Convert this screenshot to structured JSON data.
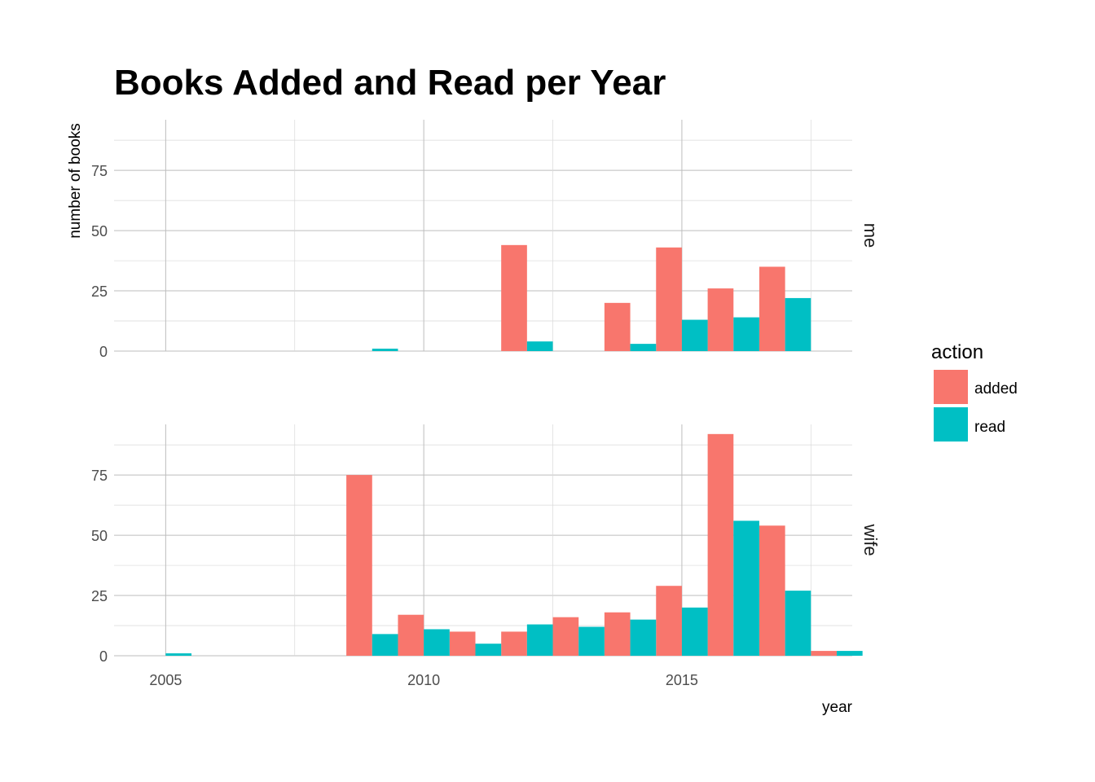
{
  "chart_data": {
    "type": "bar",
    "title": "Books Added and Read per Year",
    "xlabel": "year",
    "ylabel": "number of books",
    "xlim": [
      2004,
      2018.3
    ],
    "ylim": [
      0,
      96
    ],
    "x_ticks": [
      2005,
      2010,
      2015
    ],
    "y_ticks": [
      0,
      25,
      50,
      75
    ],
    "grid": true,
    "legend": {
      "title": "action",
      "position": "right"
    },
    "series_names": [
      "added",
      "read"
    ],
    "colors": {
      "added": "#F8766D",
      "read": "#00BFC4"
    },
    "facets": [
      {
        "name": "me",
        "series": [
          {
            "name": "added",
            "x": [
              2012,
              2014,
              2015,
              2016,
              2017
            ],
            "values": [
              44,
              20,
              43,
              26,
              35
            ]
          },
          {
            "name": "read",
            "x": [
              2009,
              2012,
              2014,
              2015,
              2016,
              2017
            ],
            "values": [
              1,
              4,
              3,
              13,
              14,
              22
            ]
          }
        ]
      },
      {
        "name": "wife",
        "series": [
          {
            "name": "added",
            "x": [
              2009,
              2010,
              2011,
              2012,
              2013,
              2014,
              2015,
              2016,
              2017,
              2018
            ],
            "values": [
              75,
              17,
              10,
              10,
              16,
              18,
              29,
              92,
              54,
              2
            ]
          },
          {
            "name": "read",
            "x": [
              2005,
              2009,
              2010,
              2011,
              2012,
              2013,
              2014,
              2015,
              2016,
              2017,
              2018
            ],
            "values": [
              1,
              9,
              11,
              5,
              13,
              12,
              15,
              20,
              56,
              27,
              2
            ]
          }
        ]
      }
    ]
  }
}
